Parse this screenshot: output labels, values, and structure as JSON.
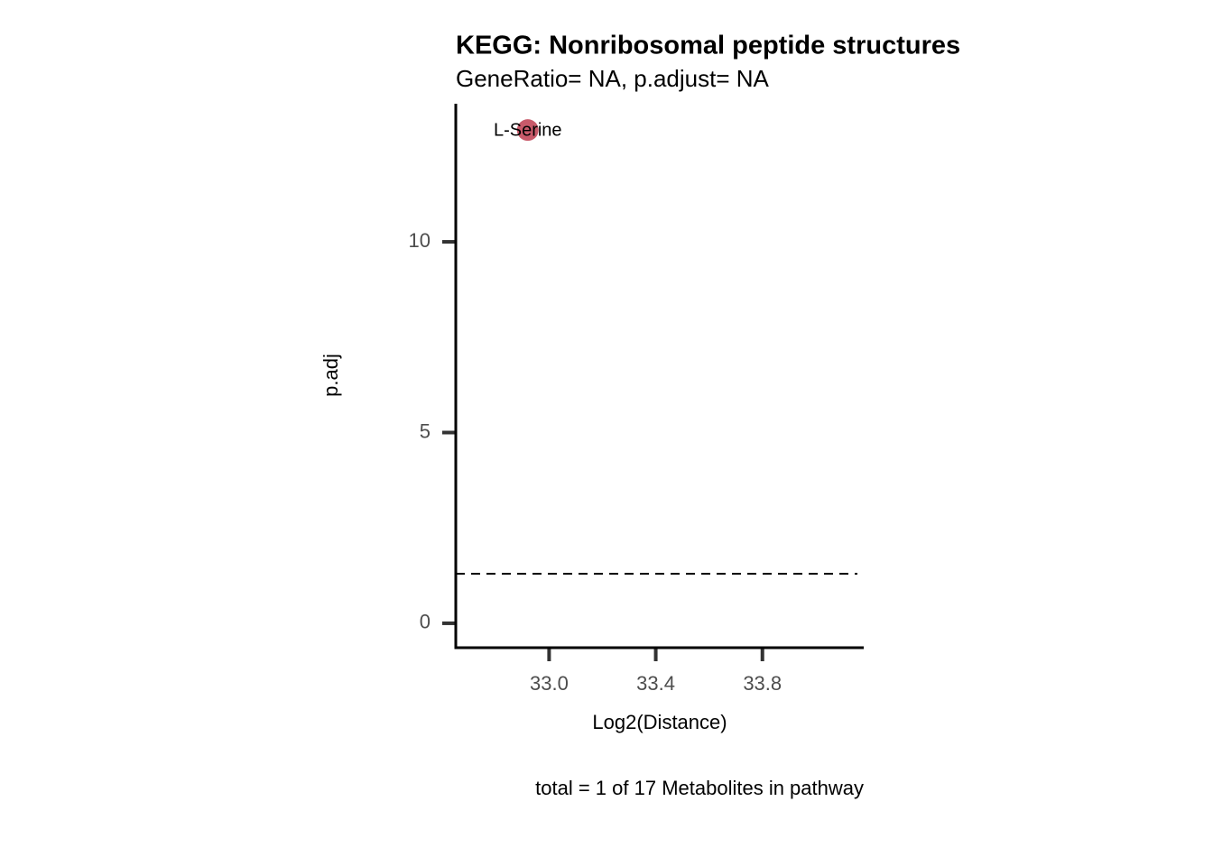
{
  "chart_data": {
    "type": "scatter",
    "title": "KEGG: Nonribosomal peptide structures",
    "subtitle": "GeneRatio= NA, p.adjust= NA",
    "xlabel": "Log2(Distance)",
    "ylabel": "p.adj",
    "caption": "total = 1 of 17 Metabolites in pathway",
    "x": [
      32.92
    ],
    "values": [
      12.93
    ],
    "labels": [
      "L-Serine"
    ],
    "color": "#c85a6a",
    "hline": 1.3,
    "xlim": [
      32.65,
      34.18
    ],
    "ylim": [
      -0.64,
      13.62
    ],
    "xticks": [
      {
        "value": 33,
        "label": "33.0"
      },
      33.4,
      33.8
    ],
    "yticks": [
      0,
      5,
      10
    ]
  }
}
